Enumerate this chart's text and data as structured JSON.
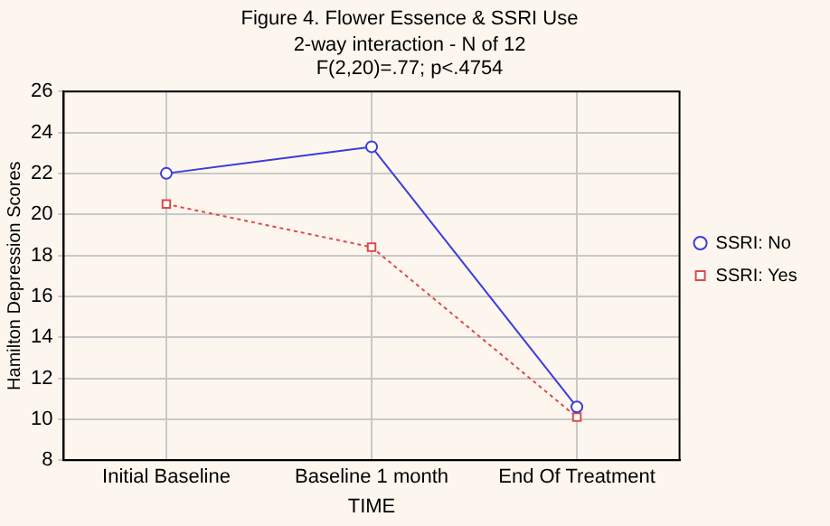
{
  "chart_data": {
    "type": "line",
    "title": "Figure 4. Flower Essence & SSRI Use",
    "subtitle": "2-way interaction - N of 12",
    "annotations": [
      "F(2,20)=.77; p<.4754"
    ],
    "xlabel": "TIME",
    "ylabel": "Hamilton Depression Scores",
    "categories": [
      "Initial Baseline",
      "Baseline 1 month",
      "End Of Treatment"
    ],
    "series": [
      {
        "name": "SSRI: No",
        "color": "#3c3cdc",
        "values": [
          22,
          23.3,
          10.6
        ],
        "marker": "circle",
        "line_style": "solid"
      },
      {
        "name": "SSRI: Yes",
        "color": "#e04848",
        "values": [
          20.5,
          18.4,
          10.1
        ],
        "marker": "square",
        "line_style": "dotted"
      }
    ],
    "ylim": [
      8,
      26
    ],
    "yticks": [
      8,
      10,
      12,
      14,
      16,
      18,
      20,
      22,
      24,
      26
    ],
    "grid": true,
    "legend": "right"
  }
}
